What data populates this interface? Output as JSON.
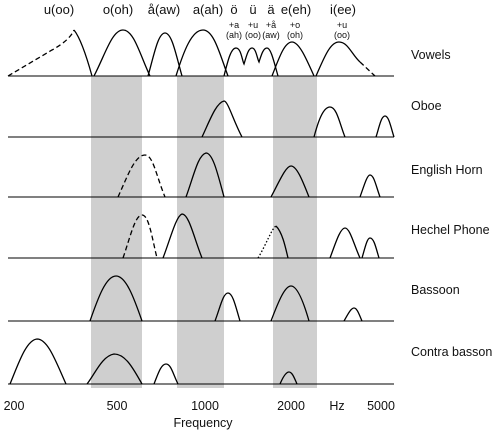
{
  "vowels": [
    {
      "label": "u(oo)"
    },
    {
      "label": "o(oh)"
    },
    {
      "label": "å(aw)"
    },
    {
      "label": "a(ah)"
    },
    {
      "label": "ö",
      "sub1": "+a",
      "sub2": "(ah)"
    },
    {
      "label": "ü",
      "sub1": "+u",
      "sub2": "(oo)"
    },
    {
      "label": "ä",
      "sub1": "+å",
      "sub2": "(aw)"
    },
    {
      "label": "e(eh)",
      "sub1": "+o",
      "sub2": "(oh)"
    },
    {
      "label": "i(ee)",
      "sub1": "+u",
      "sub2": "(oo)"
    }
  ],
  "rows": [
    "Vowels",
    "Oboe",
    "English Horn",
    "Hechel Phone",
    "Bassoon",
    "Contra basson"
  ],
  "x_axis": {
    "ticks": [
      "200",
      "500",
      "1000",
      "2000",
      "Hz",
      "5000"
    ],
    "label": "Frequency"
  }
}
